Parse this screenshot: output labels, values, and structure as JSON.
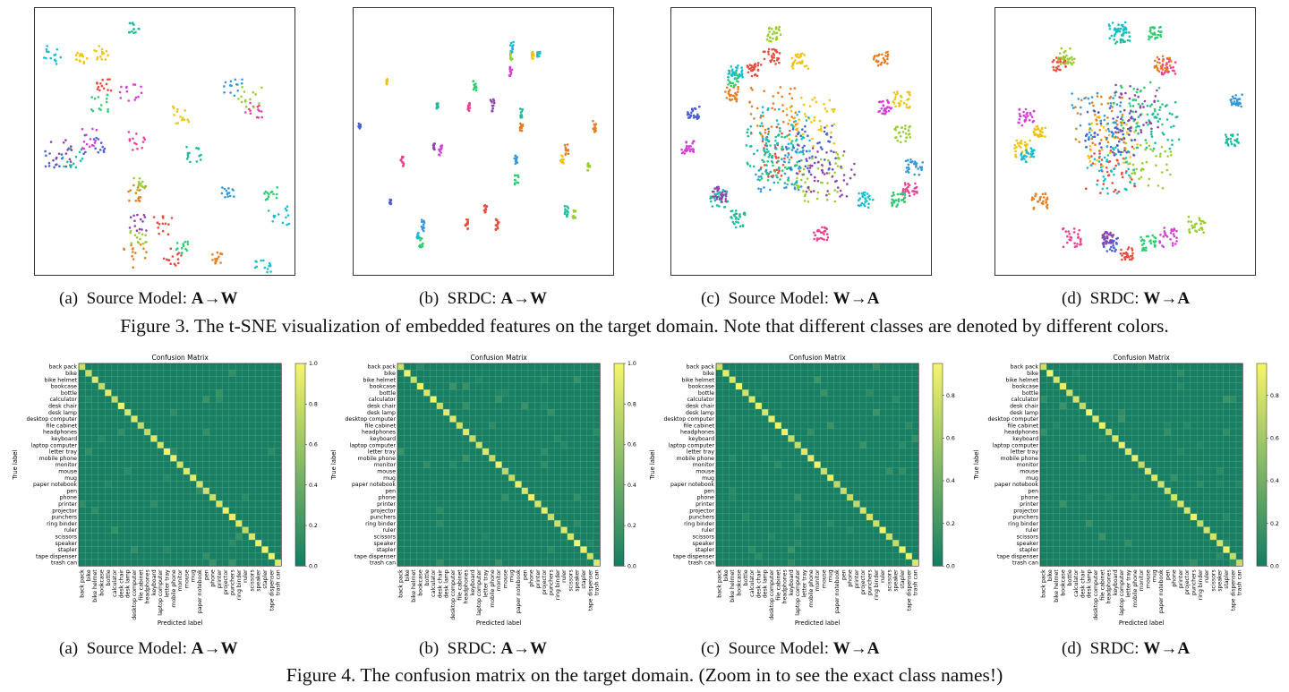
{
  "figure3": {
    "caption": "Figure 3. The t-SNE visualization of embedded features on the target domain. Note that different classes are denoted by different colors.",
    "panels": [
      {
        "label": "(a)",
        "text": "Source Model: ",
        "task": "A→W"
      },
      {
        "label": "(b)",
        "text": "SRDC: ",
        "task": "A→W"
      },
      {
        "label": "(c)",
        "text": "Source Model: ",
        "task": "W→A"
      },
      {
        "label": "(d)",
        "text": "SRDC: ",
        "task": "W→A"
      }
    ]
  },
  "figure4": {
    "caption": "Figure 4. The confusion matrix on the target domain. (Zoom in to see the exact class names!)",
    "panels": [
      {
        "label": "(a)",
        "text": "Source Model: ",
        "task": "A→W"
      },
      {
        "label": "(b)",
        "text": "SRDC: ",
        "task": "A→W"
      },
      {
        "label": "(c)",
        "text": "Source Model: ",
        "task": "W→A"
      },
      {
        "label": "(d)",
        "text": "SRDC: ",
        "task": "W→A"
      }
    ]
  },
  "confusion": {
    "title": "Confusion Matrix",
    "xlabel": "Predicted label",
    "ylabel": "True label",
    "classes": [
      "back pack",
      "bike",
      "bike helmet",
      "bookcase",
      "bottle",
      "calculator",
      "desk chair",
      "desk lamp",
      "desktop computer",
      "file cabinet",
      "headphones",
      "keyboard",
      "laptop computer",
      "letter tray",
      "mobile phone",
      "monitor",
      "mouse",
      "mug",
      "paper notebook",
      "pen",
      "phone",
      "printer",
      "projector",
      "punchers",
      "ring binder",
      "ruler",
      "scissors",
      "speaker",
      "stapler",
      "tape dispenser",
      "trash can"
    ],
    "colorbars": [
      {
        "ticks": [
          "1.0",
          "0.8",
          "0.6",
          "0.4",
          "0.2",
          "0.0"
        ]
      },
      {
        "ticks": [
          "1.0",
          "0.8",
          "0.6",
          "0.4",
          "0.2",
          "0.0"
        ]
      },
      {
        "ticks": [
          "0.8",
          "0.6",
          "0.4",
          "0.2",
          "0.0"
        ]
      },
      {
        "ticks": [
          "0.8",
          "0.6",
          "0.4",
          "0.2",
          "0.0"
        ]
      }
    ]
  },
  "colors": {
    "cm_low": "#137d63",
    "cm_high": "#f7f56a",
    "cluster_palette": [
      "#e74c3c",
      "#e67e22",
      "#f1c40f",
      "#9acd32",
      "#2ecc71",
      "#1abc9c",
      "#17becf",
      "#3498db",
      "#4a5fd6",
      "#8e44ad",
      "#d63fd6",
      "#e84393"
    ]
  }
}
